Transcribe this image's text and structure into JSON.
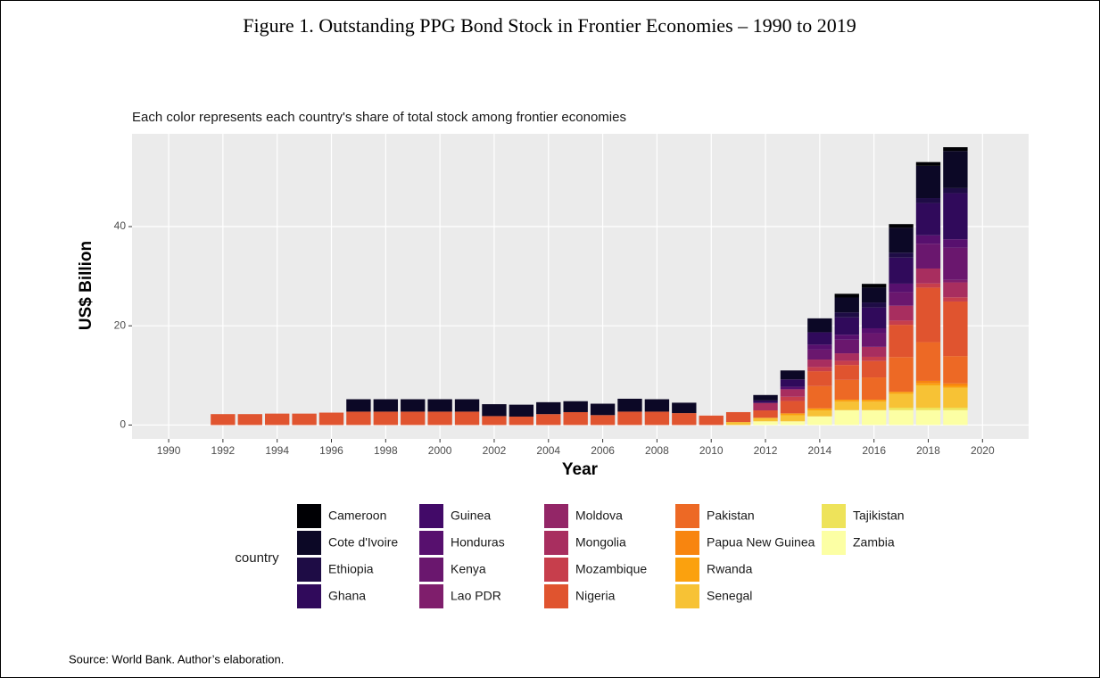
{
  "chart_data": {
    "type": "stacked_bar",
    "title": "Figure 1. Outstanding PPG Bond Stock in Frontier Economies – 1990 to 2019",
    "subtitle": "Each color represents each country's share of total stock among frontier economies",
    "ylabel": "US$ Billion",
    "xlabel": "Year",
    "legend_title": "country",
    "source": "Source: World Bank. Author’s elaboration.",
    "x": [
      1990,
      1991,
      1992,
      1993,
      1994,
      1995,
      1996,
      1997,
      1998,
      1999,
      2000,
      2001,
      2002,
      2003,
      2004,
      2005,
      2006,
      2007,
      2008,
      2009,
      2010,
      2011,
      2012,
      2013,
      2014,
      2015,
      2016,
      2017,
      2018,
      2019
    ],
    "xlim": [
      1988.65,
      2021.7
    ],
    "xticks": [
      1990,
      1992,
      1994,
      1996,
      1998,
      2000,
      2002,
      2004,
      2006,
      2008,
      2010,
      2012,
      2014,
      2016,
      2018,
      2020
    ],
    "ylim": [
      -2.8,
      58.7
    ],
    "yticks": [
      0,
      20,
      40
    ],
    "grid": true,
    "series": [
      {
        "name": "Cameroon",
        "color": "#000004",
        "values": [
          0,
          0,
          0,
          0,
          0,
          0,
          0,
          0,
          0,
          0,
          0,
          0,
          0,
          0,
          0,
          0,
          0,
          0,
          0,
          0,
          0,
          0,
          0,
          0,
          0,
          0.75,
          0.75,
          0.75,
          0.75,
          0.75
        ]
      },
      {
        "name": "Cote d'Ivoire",
        "color": "#0c0826",
        "values": [
          0,
          0,
          0,
          0,
          0,
          0,
          0,
          2.5,
          2.5,
          2.5,
          2.5,
          2.5,
          2.4,
          2.4,
          2.4,
          2.2,
          2.3,
          2.6,
          2.5,
          2.1,
          0,
          0,
          1.1,
          1.8,
          2.8,
          3.0,
          3.0,
          5.0,
          6.5,
          7.5
        ]
      },
      {
        "name": "Ethiopia",
        "color": "#1e0c45",
        "values": [
          0,
          0,
          0,
          0,
          0,
          0,
          0,
          0,
          0,
          0,
          0,
          0,
          0,
          0,
          0,
          0,
          0,
          0,
          0,
          0,
          0,
          0,
          0,
          0,
          0,
          1,
          1,
          1,
          1,
          1
        ]
      },
      {
        "name": "Ghana",
        "color": "#300a5b",
        "values": [
          0,
          0,
          0,
          0,
          0,
          0,
          0,
          0,
          0,
          0,
          0,
          0,
          0,
          0,
          0,
          0,
          0,
          0,
          0,
          0,
          0,
          0,
          0.5,
          1.5,
          2.5,
          3.5,
          4.2,
          5.25,
          6.5,
          9.3
        ]
      },
      {
        "name": "Guinea",
        "color": "#420a68",
        "values": [
          0,
          0,
          0,
          0,
          0,
          0,
          0,
          0,
          0,
          0,
          0,
          0,
          0,
          0,
          0,
          0,
          0,
          0,
          0,
          0,
          0,
          0,
          0,
          0,
          0,
          0,
          0,
          0,
          0,
          0
        ]
      },
      {
        "name": "Honduras",
        "color": "#57106e",
        "values": [
          0,
          0,
          0,
          0,
          0,
          0,
          0,
          0,
          0,
          0,
          0,
          0,
          0,
          0,
          0,
          0,
          0,
          0,
          0,
          0,
          0,
          0,
          0,
          0.5,
          1,
          1,
          1,
          1.7,
          1.7,
          1.7
        ]
      },
      {
        "name": "Kenya",
        "color": "#6a176e",
        "values": [
          0,
          0,
          0,
          0,
          0,
          0,
          0,
          0,
          0,
          0,
          0,
          0,
          0,
          0,
          0,
          0,
          0,
          0,
          0,
          0,
          0,
          0,
          0,
          0,
          2,
          2.75,
          2.75,
          2.75,
          5,
          6.5
        ]
      },
      {
        "name": "Lao PDR",
        "color": "#7f1e6c",
        "values": [
          0,
          0,
          0,
          0,
          0,
          0,
          0,
          0,
          0,
          0,
          0,
          0,
          0,
          0,
          0,
          0,
          0,
          0,
          0,
          0,
          0,
          0,
          0,
          0,
          0,
          0,
          0,
          0,
          0,
          0.5
        ]
      },
      {
        "name": "Moldova",
        "color": "#932667",
        "values": [
          0,
          0,
          0,
          0,
          0,
          0,
          0,
          0,
          0,
          0,
          0,
          0,
          0,
          0,
          0,
          0,
          0,
          0,
          0,
          0,
          0,
          0,
          0,
          0,
          0,
          0,
          0,
          0,
          0,
          0
        ]
      },
      {
        "name": "Mongolia",
        "color": "#a82e5f",
        "values": [
          0,
          0,
          0,
          0,
          0,
          0,
          0,
          0,
          0,
          0,
          0,
          0,
          0,
          0,
          0,
          0,
          0,
          0,
          0,
          0,
          0,
          0,
          1.5,
          1.5,
          1.5,
          1.5,
          2,
          3,
          3,
          3
        ]
      },
      {
        "name": "Mozambique",
        "color": "#c73e4c",
        "values": [
          0,
          0,
          0,
          0,
          0,
          0,
          0,
          0,
          0,
          0,
          0,
          0,
          0,
          0,
          0,
          0,
          0,
          0,
          0,
          0,
          0,
          0,
          0,
          0.85,
          0.85,
          0.85,
          0.85,
          0.85,
          0.85,
          0.85
        ]
      },
      {
        "name": "Nigeria",
        "color": "#e0542f",
        "values": [
          0,
          0,
          2.2,
          2.2,
          2.3,
          2.3,
          2.5,
          2.7,
          2.7,
          2.7,
          2.7,
          2.7,
          1.8,
          1.7,
          2.2,
          2.6,
          2.0,
          2.7,
          2.7,
          2.4,
          1.9,
          2.0,
          1.5,
          2.5,
          3,
          3,
          3.3,
          6.5,
          11,
          11
        ]
      },
      {
        "name": "Pakistan",
        "color": "#ed6925",
        "values": [
          0,
          0,
          0,
          0,
          0,
          0,
          0,
          0,
          0,
          0,
          0,
          0,
          0,
          0,
          0,
          0,
          0,
          0,
          0,
          0,
          0,
          0,
          0,
          0,
          4.5,
          4,
          4.5,
          7,
          7.8,
          5.5
        ]
      },
      {
        "name": "Papua New Guinea",
        "color": "#f8850f",
        "values": [
          0,
          0,
          0,
          0,
          0,
          0,
          0,
          0,
          0,
          0,
          0,
          0,
          0,
          0,
          0,
          0,
          0,
          0,
          0,
          0,
          0,
          0,
          0,
          0,
          0,
          0,
          0,
          0,
          0.5,
          0.5
        ]
      },
      {
        "name": "Rwanda",
        "color": "#fba10e",
        "values": [
          0,
          0,
          0,
          0,
          0,
          0,
          0,
          0,
          0,
          0,
          0,
          0,
          0,
          0,
          0,
          0,
          0,
          0,
          0,
          0,
          0,
          0,
          0,
          0.4,
          0.4,
          0.4,
          0.4,
          0.4,
          0.4,
          0.4
        ]
      },
      {
        "name": "Senegal",
        "color": "#f7c235",
        "values": [
          0,
          0,
          0,
          0,
          0,
          0,
          0,
          0,
          0,
          0,
          0,
          0,
          0,
          0,
          0,
          0,
          0,
          0,
          0,
          0,
          0,
          0.6,
          0.7,
          1.2,
          1.2,
          1.7,
          1.7,
          2.8,
          4.5,
          4.0
        ]
      },
      {
        "name": "Tajikistan",
        "color": "#eee35a",
        "values": [
          0,
          0,
          0,
          0,
          0,
          0,
          0,
          0,
          0,
          0,
          0,
          0,
          0,
          0,
          0,
          0,
          0,
          0,
          0,
          0,
          0,
          0,
          0,
          0,
          0,
          0,
          0,
          0.5,
          0.5,
          0.5
        ]
      },
      {
        "name": "Zambia",
        "color": "#fcffa4",
        "values": [
          0,
          0,
          0,
          0,
          0,
          0,
          0,
          0,
          0,
          0,
          0,
          0,
          0,
          0,
          0,
          0,
          0,
          0,
          0,
          0,
          0,
          0,
          0.75,
          0.75,
          1.75,
          3,
          3,
          3,
          3,
          3
        ]
      }
    ]
  }
}
